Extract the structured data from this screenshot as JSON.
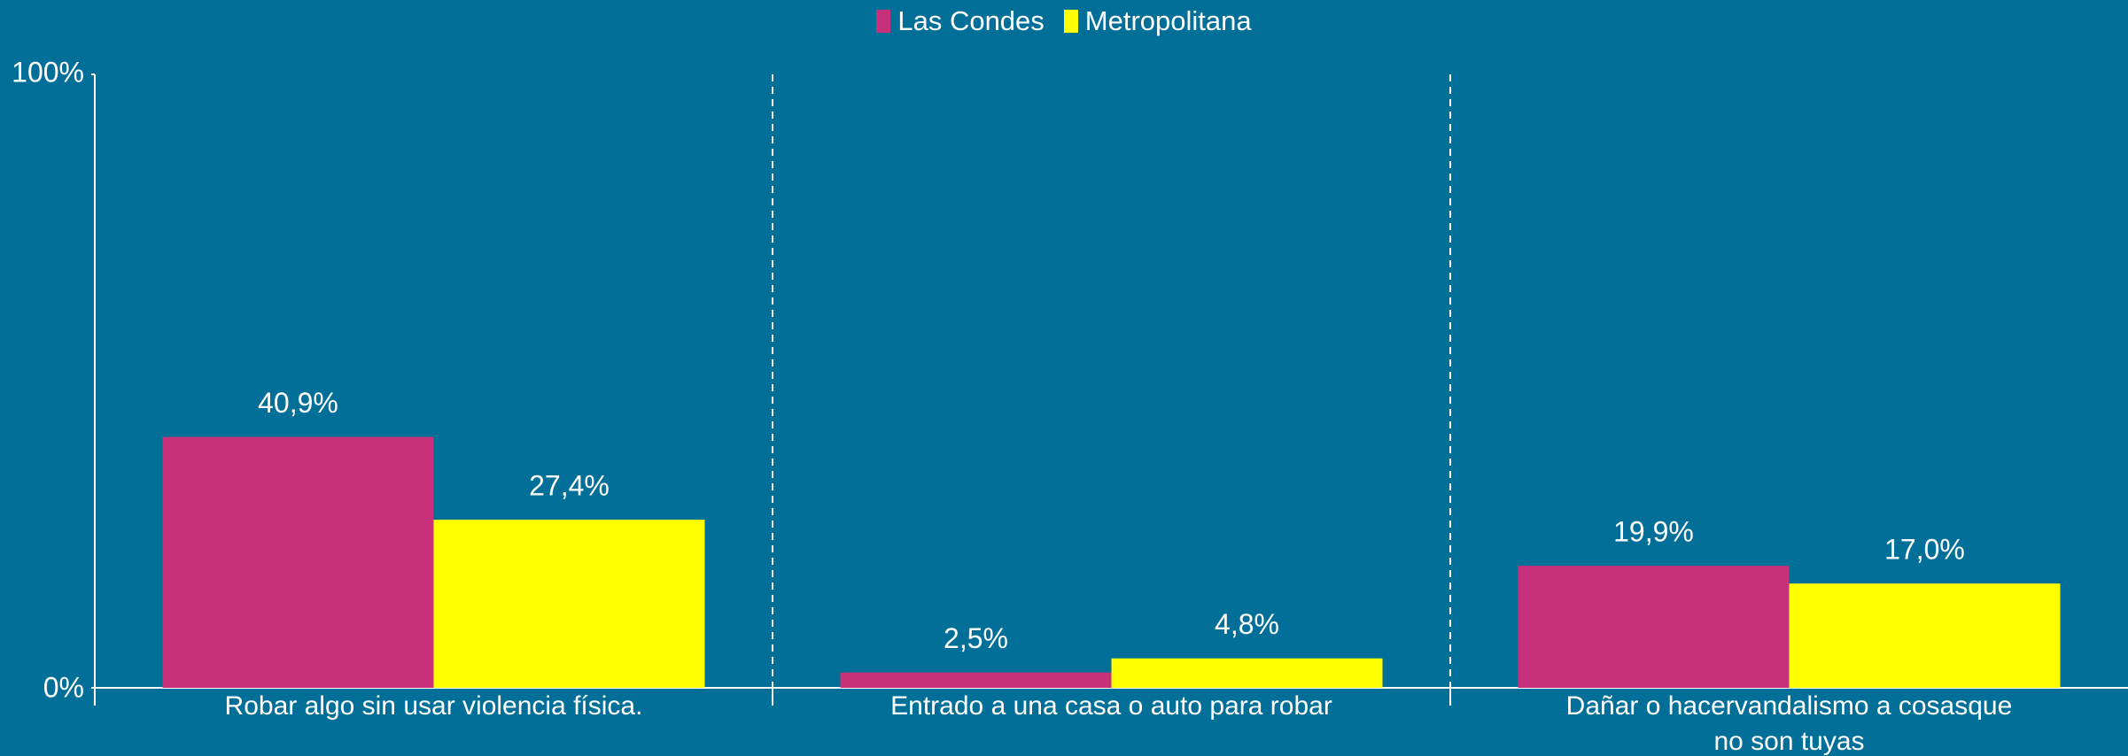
{
  "chart_data": {
    "type": "bar",
    "categories": [
      "Robar algo sin usar violencia física.",
      "Entrado a una casa o auto para robar",
      "Dañar o hacervandalismo a cosasque no son tuyas"
    ],
    "series": [
      {
        "name": "Las Condes",
        "color": "#c8307a",
        "values": [
          40.9,
          2.5,
          19.9
        ],
        "value_labels": [
          "40,9%",
          "2,5%",
          "19,9%"
        ]
      },
      {
        "name": "Metropolitana",
        "color": "#ffff00",
        "values": [
          27.4,
          4.8,
          17.0
        ],
        "value_labels": [
          "27,4%",
          "4,8%",
          "17,0%"
        ]
      }
    ],
    "ylim": [
      0,
      100
    ],
    "yticks": [
      {
        "value": 0,
        "label": "0%"
      },
      {
        "value": 100,
        "label": "100%"
      }
    ],
    "legend": "top"
  }
}
